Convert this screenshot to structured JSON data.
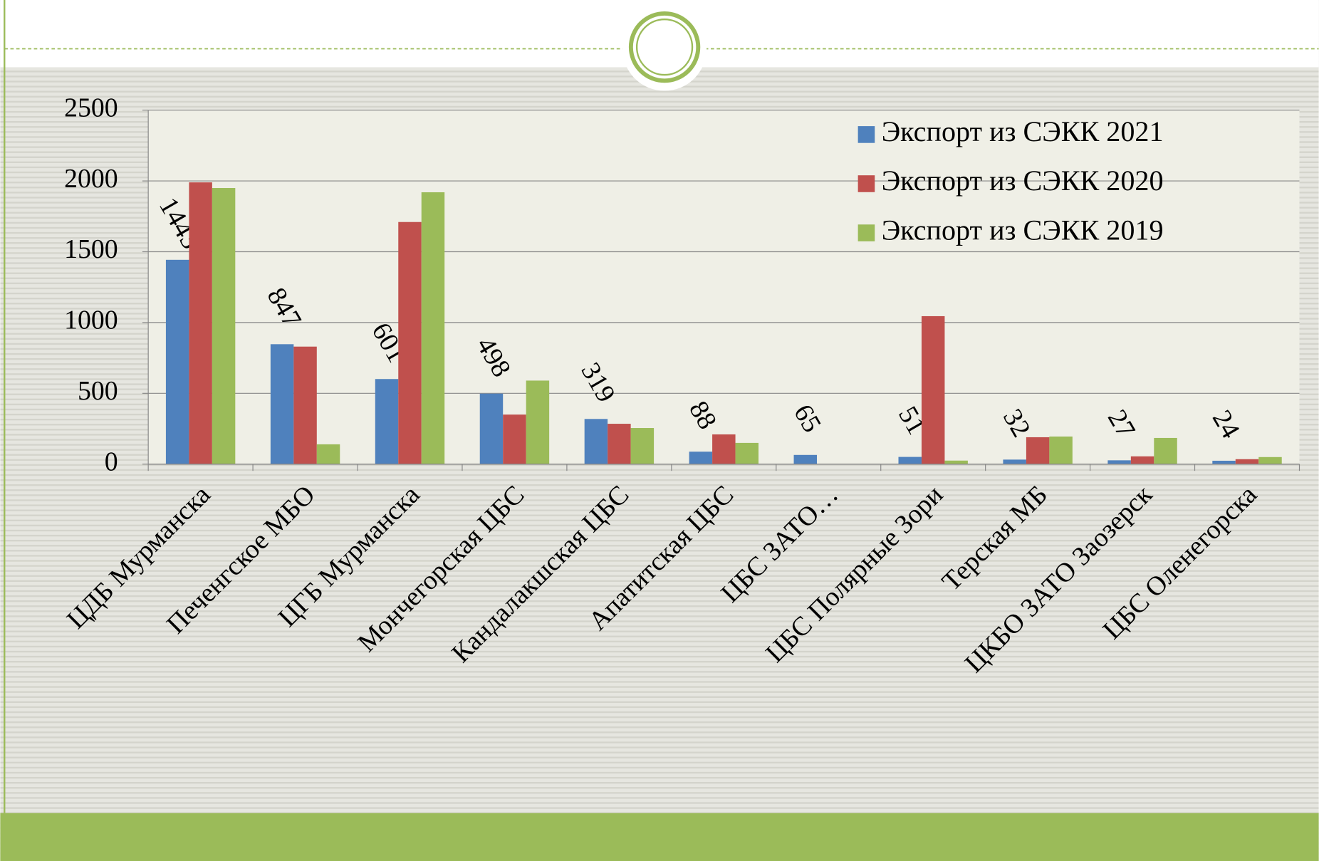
{
  "chart_data": {
    "type": "bar",
    "categories": [
      "ЦДБ Мурманска",
      "Печенгское МБО",
      "ЦГБ Мурманска",
      "Мончегорская ЦБС",
      "Кандалакшская ЦБС",
      "Апатитская ЦБС",
      "ЦБС ЗАТО…",
      "ЦБС Полярные Зори",
      "Терская МБ",
      "ЦКБО ЗАТО Заозерск",
      "ЦБС Оленегорска"
    ],
    "series": [
      {
        "name": "Экспорт из СЭКК 2021",
        "color": "#4f81bd",
        "values": [
          1443,
          847,
          601,
          498,
          319,
          88,
          65,
          51,
          32,
          27,
          24
        ],
        "data_labels": true
      },
      {
        "name": "Экспорт из СЭКК 2020",
        "color": "#c0504d",
        "values": [
          1990,
          830,
          1710,
          350,
          285,
          210,
          0,
          1045,
          190,
          55,
          35
        ]
      },
      {
        "name": "Экспорт из СЭКК 2019",
        "color": "#9bbb59",
        "values": [
          1950,
          140,
          1920,
          590,
          255,
          150,
          0,
          25,
          195,
          185,
          50
        ]
      }
    ],
    "ylim": [
      0,
      2500
    ],
    "yticks": [
      0,
      500,
      1000,
      1500,
      2000,
      2500
    ],
    "grid": true,
    "legend": "top-right"
  }
}
